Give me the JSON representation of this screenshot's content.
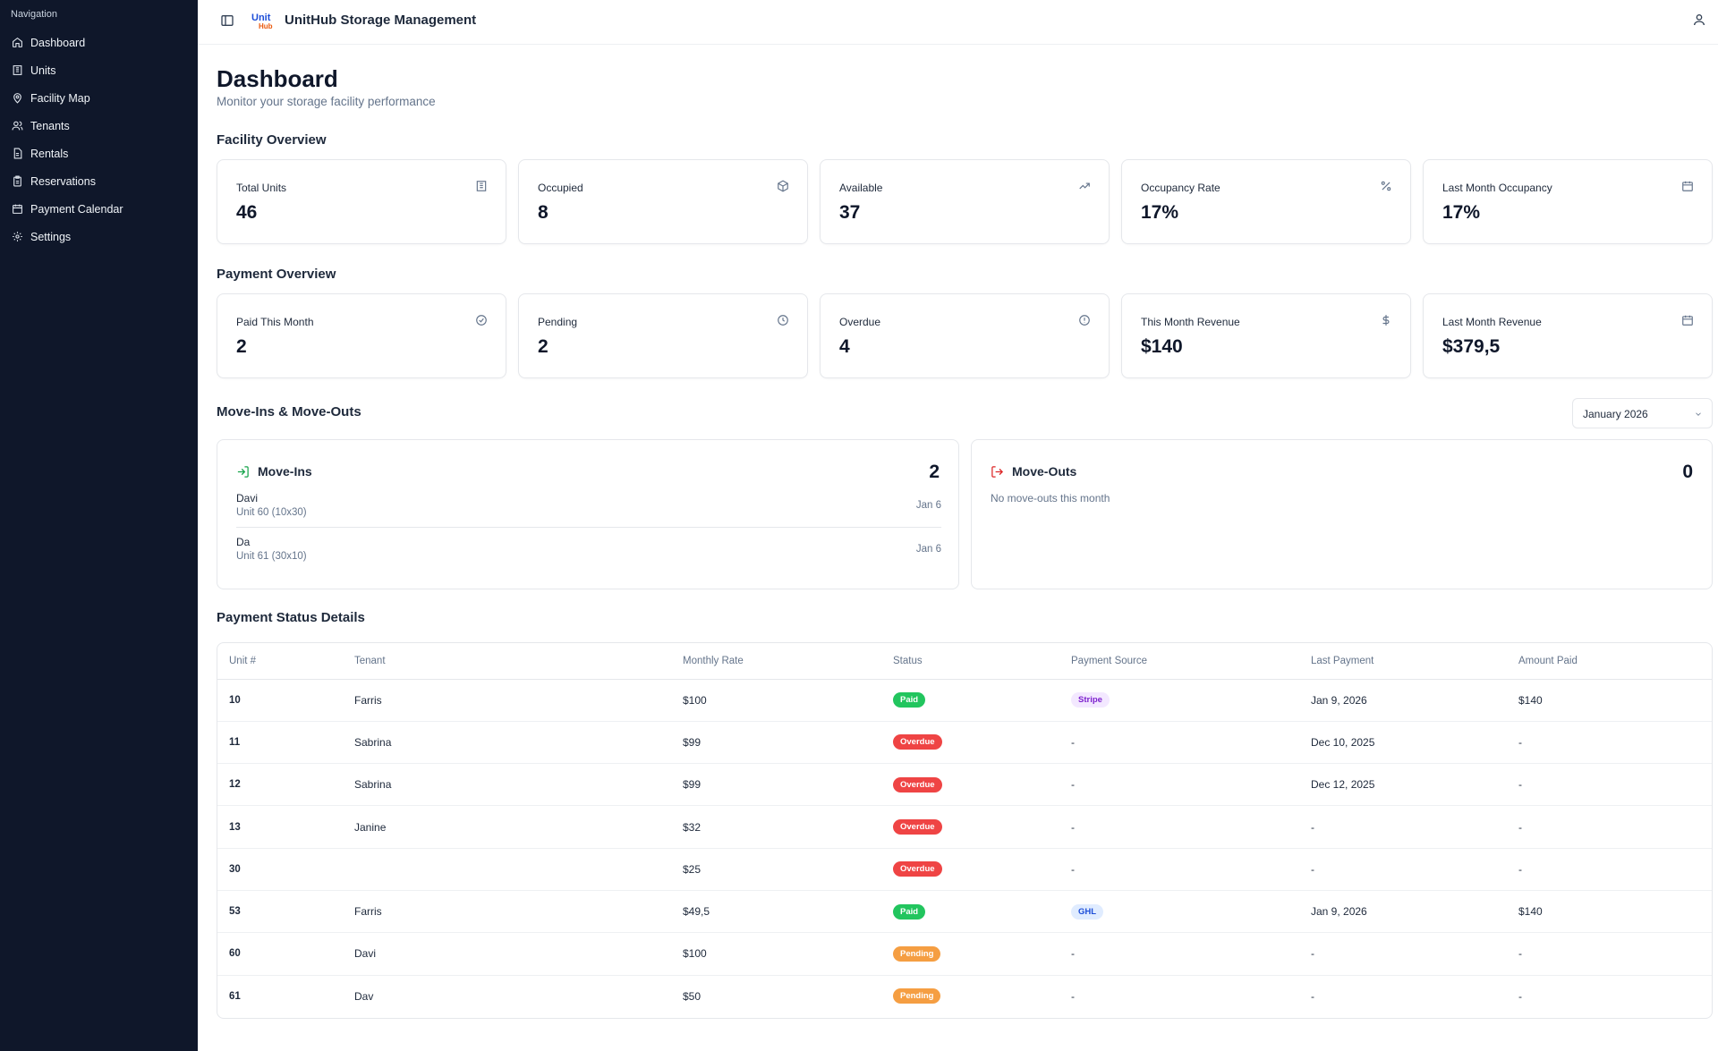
{
  "nav": {
    "heading": "Navigation",
    "items": [
      {
        "label": "Dashboard"
      },
      {
        "label": "Units"
      },
      {
        "label": "Facility Map"
      },
      {
        "label": "Tenants"
      },
      {
        "label": "Rentals"
      },
      {
        "label": "Reservations"
      },
      {
        "label": "Payment Calendar"
      },
      {
        "label": "Settings"
      }
    ]
  },
  "header": {
    "title": "UnitHub Storage Management",
    "logo_text_top": "Unit",
    "logo_text_bottom": "Hub"
  },
  "page": {
    "title": "Dashboard",
    "subtitle": "Monitor your storage facility performance"
  },
  "facility_overview": {
    "title": "Facility Overview",
    "cards": [
      {
        "label": "Total Units",
        "value": "46",
        "icon": "building-icon"
      },
      {
        "label": "Occupied",
        "value": "8",
        "icon": "package-icon"
      },
      {
        "label": "Available",
        "value": "37",
        "icon": "trending-up-icon"
      },
      {
        "label": "Occupancy Rate",
        "value": "17%",
        "icon": "percent-icon"
      },
      {
        "label": "Last Month Occupancy",
        "value": "17%",
        "icon": "calendar-icon"
      }
    ]
  },
  "payment_overview": {
    "title": "Payment Overview",
    "cards": [
      {
        "label": "Paid This Month",
        "value": "2",
        "icon": "check-circle-icon"
      },
      {
        "label": "Pending",
        "value": "2",
        "icon": "clock-icon"
      },
      {
        "label": "Overdue",
        "value": "4",
        "icon": "alert-circle-icon"
      },
      {
        "label": "This Month Revenue",
        "value": "$140",
        "icon": "dollar-icon"
      },
      {
        "label": "Last Month Revenue",
        "value": "$379,5",
        "icon": "calendar-icon"
      }
    ]
  },
  "moves": {
    "title": "Move-Ins & Move-Outs",
    "month": "January 2026",
    "move_ins": {
      "title": "Move-Ins",
      "count": "2",
      "entries": [
        {
          "name": "Davi",
          "unit": "Unit 60 (10x30)",
          "date": "Jan 6"
        },
        {
          "name": "Da",
          "unit": "Unit 61 (30x10)",
          "date": "Jan 6"
        }
      ]
    },
    "move_outs": {
      "title": "Move-Outs",
      "count": "0",
      "empty": "No move-outs this month"
    }
  },
  "payment_status": {
    "title": "Payment Status Details",
    "columns": [
      "Unit #",
      "Tenant",
      "Monthly Rate",
      "Status",
      "Payment Source",
      "Last Payment",
      "Amount Paid"
    ],
    "rows": [
      {
        "unit": "10",
        "tenant": "Farris",
        "rate": "$100",
        "status": "Paid",
        "source": "Stripe",
        "last_payment": "Jan 9, 2026",
        "amount": "$140"
      },
      {
        "unit": "11",
        "tenant": "Sabrina",
        "rate": "$99",
        "status": "Overdue",
        "source": "-",
        "last_payment": "Dec 10, 2025",
        "amount": "-"
      },
      {
        "unit": "12",
        "tenant": "Sabrina",
        "rate": "$99",
        "status": "Overdue",
        "source": "-",
        "last_payment": "Dec 12, 2025",
        "amount": "-"
      },
      {
        "unit": "13",
        "tenant": "Janine",
        "rate": "$32",
        "status": "Overdue",
        "source": "-",
        "last_payment": "-",
        "amount": "-"
      },
      {
        "unit": "30",
        "tenant": "",
        "rate": "$25",
        "status": "Overdue",
        "source": "-",
        "last_payment": "-",
        "amount": "-"
      },
      {
        "unit": "53",
        "tenant": "Farris",
        "rate": "$49,5",
        "status": "Paid",
        "source": "GHL",
        "last_payment": "Jan 9, 2026",
        "amount": "$140"
      },
      {
        "unit": "60",
        "tenant": "Davi",
        "rate": "$100",
        "status": "Pending",
        "source": "-",
        "last_payment": "-",
        "amount": "-"
      },
      {
        "unit": "61",
        "tenant": "Dav",
        "rate": "$50",
        "status": "Pending",
        "source": "-",
        "last_payment": "-",
        "amount": "-"
      }
    ]
  },
  "colors": {
    "sidebar_bg": "#0f172a",
    "paid": "#22c55e",
    "overdue": "#ef4444",
    "pending": "#f59e42",
    "stripe_bg": "#f3e8ff",
    "stripe_fg": "#7e22ce",
    "ghl_bg": "#e0ecff",
    "ghl_fg": "#1d4ed8",
    "move_in_icon": "#16a34a",
    "move_out_icon": "#dc2626"
  }
}
